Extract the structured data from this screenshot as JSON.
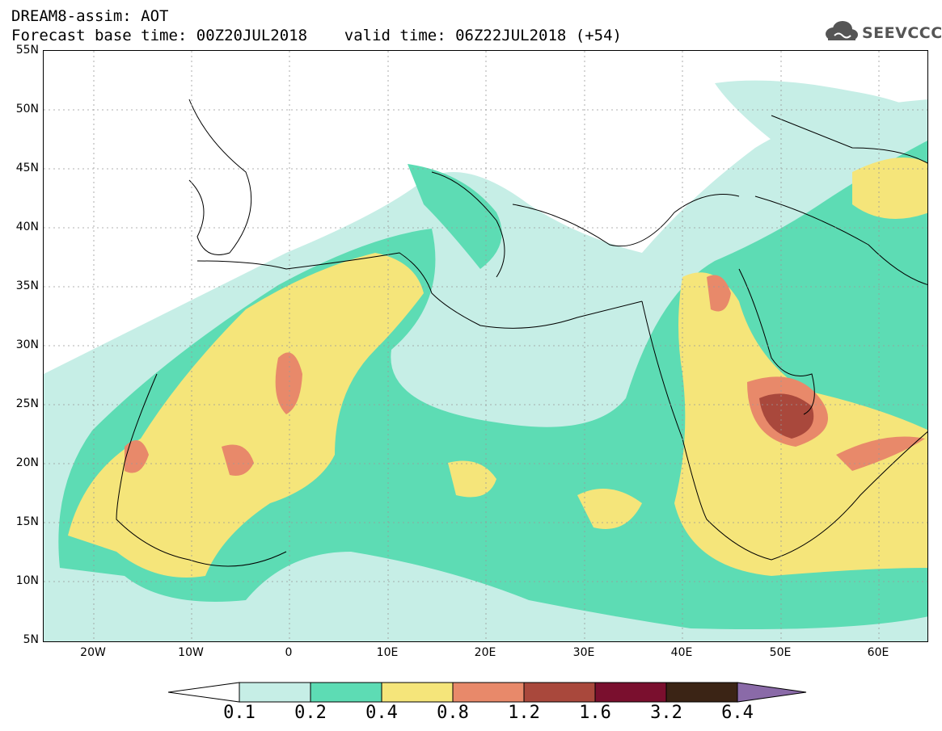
{
  "title_line1": "DREAM8-assim: AOT",
  "title_line2": "Forecast base time: 00Z20JUL2018    valid time: 06Z22JUL2018 (+54)",
  "logo_text": "SEEVCCC",
  "logo_icon": "cloud-icon",
  "lat_labels": [
    "55N",
    "50N",
    "45N",
    "40N",
    "35N",
    "30N",
    "25N",
    "20N",
    "15N",
    "10N",
    "5N"
  ],
  "lon_labels": [
    "20W",
    "10W",
    "0",
    "10E",
    "20E",
    "30E",
    "40E",
    "50E",
    "60E"
  ],
  "colorbar": {
    "levels": [
      "0.1",
      "0.2",
      "0.4",
      "0.8",
      "1.2",
      "1.6",
      "3.2",
      "6.4"
    ],
    "colors": [
      "#ffffff",
      "#c6eee6",
      "#5ddcb4",
      "#f5e57a",
      "#e8896a",
      "#a9483c",
      "#7a0f2e",
      "#3b2415",
      "#8a6aa8"
    ]
  }
}
